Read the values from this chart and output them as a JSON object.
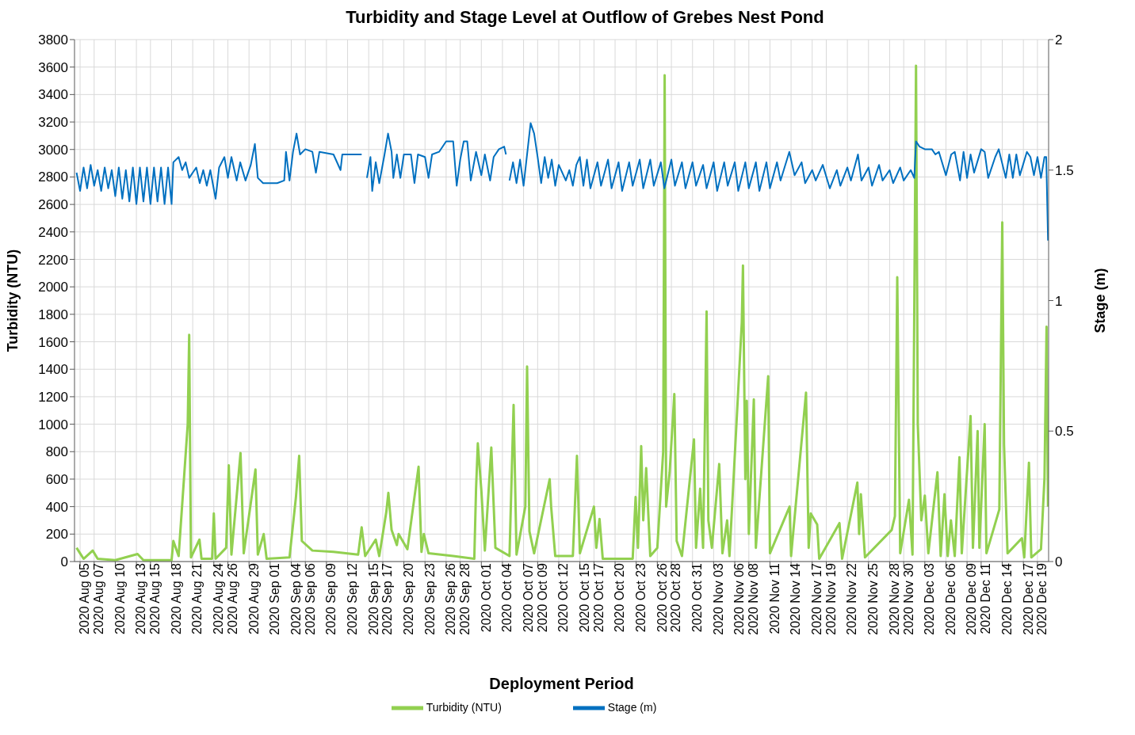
{
  "chart_data": {
    "type": "line",
    "title": "Turbidity and Stage Level at Outflow of Grebes Nest Pond",
    "xlabel": "Deployment Period",
    "ylabel": "Turbidity (NTU)",
    "y2label": "Stage (m)",
    "xlim": [
      "2020-08-04T05:00",
      "2020-12-20T14:00"
    ],
    "xticks": [
      {
        "value": "2020-08-05",
        "label": "2020 Aug 05"
      },
      {
        "value": "2020-08-07",
        "label": "2020 Aug 07"
      },
      {
        "value": "2020-08-10",
        "label": "2020 Aug 10"
      },
      {
        "value": "2020-08-13",
        "label": "2020 Aug 13"
      },
      {
        "value": "2020-08-15",
        "label": "2020 Aug 15"
      },
      {
        "value": "2020-08-18",
        "label": "2020 Aug 18"
      },
      {
        "value": "2020-08-21",
        "label": "2020 Aug 21"
      },
      {
        "value": "2020-08-24",
        "label": "2020 Aug 24"
      },
      {
        "value": "2020-08-26",
        "label": "2020 Aug 26"
      },
      {
        "value": "2020-08-29",
        "label": "2020 Aug 29"
      },
      {
        "value": "2020-09-01",
        "label": "2020 Sep 01"
      },
      {
        "value": "2020-09-04",
        "label": "2020 Sep 04"
      },
      {
        "value": "2020-09-06",
        "label": "2020 Sep 06"
      },
      {
        "value": "2020-09-09",
        "label": "2020 Sep 09"
      },
      {
        "value": "2020-09-12",
        "label": "2020 Sep 12"
      },
      {
        "value": "2020-09-15",
        "label": "2020 Sep 15"
      },
      {
        "value": "2020-09-17",
        "label": "2020 Sep 17"
      },
      {
        "value": "2020-09-20",
        "label": "2020 Sep 20"
      },
      {
        "value": "2020-09-23",
        "label": "2020 Sep 23"
      },
      {
        "value": "2020-09-26",
        "label": "2020 Sep 26"
      },
      {
        "value": "2020-09-28",
        "label": "2020 Sep 28"
      },
      {
        "value": "2020-10-01",
        "label": "2020 Oct 01"
      },
      {
        "value": "2020-10-04",
        "label": "2020 Oct 04"
      },
      {
        "value": "2020-10-07",
        "label": "2020 Oct 07"
      },
      {
        "value": "2020-10-09",
        "label": "2020 Oct 09"
      },
      {
        "value": "2020-10-12",
        "label": "2020 Oct 12"
      },
      {
        "value": "2020-10-15",
        "label": "2020 Oct 15"
      },
      {
        "value": "2020-10-17",
        "label": "2020 Oct 17"
      },
      {
        "value": "2020-10-20",
        "label": "2020 Oct 20"
      },
      {
        "value": "2020-10-23",
        "label": "2020 Oct 23"
      },
      {
        "value": "2020-10-26",
        "label": "2020 Oct 26"
      },
      {
        "value": "2020-10-28",
        "label": "2020 Oct 28"
      },
      {
        "value": "2020-10-31",
        "label": "2020 Oct 31"
      },
      {
        "value": "2020-11-03",
        "label": "2020 Nov 03"
      },
      {
        "value": "2020-11-06",
        "label": "2020 Nov 06"
      },
      {
        "value": "2020-11-08",
        "label": "2020 Nov 08"
      },
      {
        "value": "2020-11-11",
        "label": "2020 Nov 11"
      },
      {
        "value": "2020-11-14",
        "label": "2020 Nov 14"
      },
      {
        "value": "2020-11-17",
        "label": "2020 Nov 17"
      },
      {
        "value": "2020-11-19",
        "label": "2020 Nov 19"
      },
      {
        "value": "2020-11-22",
        "label": "2020 Nov 22"
      },
      {
        "value": "2020-11-25",
        "label": "2020 Nov 25"
      },
      {
        "value": "2020-11-28",
        "label": "2020 Nov 28"
      },
      {
        "value": "2020-11-30",
        "label": "2020 Nov 30"
      },
      {
        "value": "2020-12-03",
        "label": "2020 Dec 03"
      },
      {
        "value": "2020-12-06",
        "label": "2020 Dec 06"
      },
      {
        "value": "2020-12-09",
        "label": "2020 Dec 09"
      },
      {
        "value": "2020-12-11",
        "label": "2020 Dec 11"
      },
      {
        "value": "2020-12-14",
        "label": "2020 Dec 14"
      },
      {
        "value": "2020-12-17",
        "label": "2020 Dec 17"
      },
      {
        "value": "2020-12-19",
        "label": "2020 Dec 19"
      }
    ],
    "ylim": [
      0,
      3800
    ],
    "yticks": [
      0,
      200,
      400,
      600,
      800,
      1000,
      1200,
      1400,
      1600,
      1800,
      2000,
      2200,
      2400,
      2600,
      2800,
      3000,
      3200,
      3400,
      3600,
      3800
    ],
    "y2lim": [
      0,
      2
    ],
    "y2ticks": [
      0,
      0.5,
      1,
      1.5,
      2
    ],
    "grid": true,
    "legend": "bottom",
    "marker": "none",
    "line_style": "solid",
    "series": [
      {
        "name": "Turbidity (NTU)",
        "color": "#92d050",
        "x": [
          "2020-08-04T12:00",
          "2020-08-05T00:00",
          "2020-08-05T12:00",
          "2020-08-06T19:00",
          "2020-08-07T12:00",
          "2020-08-10T00:00",
          "2020-08-13T04:00",
          "2020-08-14T00:00",
          "2020-08-18T00:00",
          "2020-08-18T06:00",
          "2020-08-19T00:00",
          "2020-08-20T07:00",
          "2020-08-20T12:00",
          "2020-08-20T18:00",
          "2020-08-21T23:00",
          "2020-08-22T06:00",
          "2020-08-23T18:00",
          "2020-08-24T00:00",
          "2020-08-24T06:00",
          "2020-08-25T18:00",
          "2020-08-26T03:00",
          "2020-08-26T12:00",
          "2020-08-27T19:00",
          "2020-08-28T06:00",
          "2020-08-29T22:00",
          "2020-08-30T06:00",
          "2020-08-31T02:00",
          "2020-08-31T12:00",
          "2020-09-03T18:00",
          "2020-09-04T16:00",
          "2020-09-05T03:00",
          "2020-09-05T12:00",
          "2020-09-07T00:00",
          "2020-09-10T00:00",
          "2020-09-13T12:00",
          "2020-09-14T00:00",
          "2020-09-14T12:00",
          "2020-09-16T00:00",
          "2020-09-16T12:00",
          "2020-09-17T12:00",
          "2020-09-17T19:00",
          "2020-09-18T06:00",
          "2020-09-19T00:00",
          "2020-09-19T06:00",
          "2020-09-20T12:00",
          "2020-09-22T02:00",
          "2020-09-22T12:00",
          "2020-09-22T20:00",
          "2020-09-23T12:00",
          "2020-09-27T00:00",
          "2020-09-30T00:00",
          "2020-09-30T06:00",
          "2020-09-30T12:00",
          "2020-10-01T00:00",
          "2020-10-01T12:00",
          "2020-10-02T10:00",
          "2020-10-03T00:00",
          "2020-10-05T00:00",
          "2020-10-05T14:00",
          "2020-10-06T00:00",
          "2020-10-07T06:00",
          "2020-10-07T12:00",
          "2020-10-07T20:00",
          "2020-10-08T12:00",
          "2020-10-10T17:00",
          "2020-10-10T22:00",
          "2020-10-11T12:00",
          "2020-10-14T00:00",
          "2020-10-14T14:00",
          "2020-10-15T00:00",
          "2020-10-17T00:00",
          "2020-10-17T08:00",
          "2020-10-17T19:00",
          "2020-10-18T06:00",
          "2020-10-22T12:00",
          "2020-10-22T22:00",
          "2020-10-23T06:00",
          "2020-10-23T17:00",
          "2020-10-24T00:00",
          "2020-10-24T10:00",
          "2020-10-25T00:00",
          "2020-10-26T00:00",
          "2020-10-26T20:00",
          "2020-10-27T01:00",
          "2020-10-27T06:00",
          "2020-10-27T18:00",
          "2020-10-28T10:00",
          "2020-10-28T18:00",
          "2020-10-29T12:00",
          "2020-10-31T05:00",
          "2020-10-31T12:00",
          "2020-11-01T02:00",
          "2020-11-01T12:00",
          "2020-11-02T00:00",
          "2020-11-02T06:00",
          "2020-11-02T18:00",
          "2020-11-03T19:00",
          "2020-11-04T06:00",
          "2020-11-04T22:00",
          "2020-11-05T06:00",
          "2020-11-07T00:00",
          "2020-11-07T04:00",
          "2020-11-07T12:00",
          "2020-11-07T17:00",
          "2020-11-08T00:00",
          "2020-11-08T17:00",
          "2020-11-09T00:00",
          "2020-11-10T18:00",
          "2020-11-11T00:00",
          "2020-11-13T19:00",
          "2020-11-14T00:00",
          "2020-11-16T03:00",
          "2020-11-16T12:00",
          "2020-11-16T19:00",
          "2020-11-17T17:00",
          "2020-11-18T00:00",
          "2020-11-20T21:00",
          "2020-11-21T06:00",
          "2020-11-23T10:00",
          "2020-11-23T16:00",
          "2020-11-23T22:00",
          "2020-11-24T12:00",
          "2020-11-28T07:00",
          "2020-11-28T18:00",
          "2020-11-29T02:00",
          "2020-11-29T12:00",
          "2020-11-30T18:00",
          "2020-12-01T06:00",
          "2020-12-01T18:00",
          "2020-12-02T00:00",
          "2020-12-02T12:00",
          "2020-12-03T00:00",
          "2020-12-03T12:00",
          "2020-12-04T19:00",
          "2020-12-05T06:00",
          "2020-12-05T19:00",
          "2020-12-06T06:00",
          "2020-12-06T17:00",
          "2020-12-07T06:00",
          "2020-12-07T22:00",
          "2020-12-08T06:00",
          "2020-12-09T12:00",
          "2020-12-09T20:00",
          "2020-12-10T12:00",
          "2020-12-10T18:00",
          "2020-12-11T12:00",
          "2020-12-11T18:00",
          "2020-12-13T14:00",
          "2020-12-14T00:00",
          "2020-12-14T06:00",
          "2020-12-14T18:00",
          "2020-12-16T19:00",
          "2020-12-17T03:00",
          "2020-12-17T19:00",
          "2020-12-18T03:00",
          "2020-12-19T12:00",
          "2020-12-20T00:00",
          "2020-12-20T07:00",
          "2020-12-20T12:00"
        ],
        "values": [
          100,
          60,
          20,
          80,
          20,
          10,
          55,
          10,
          10,
          150,
          40,
          1000,
          1650,
          30,
          160,
          20,
          20,
          350,
          20,
          100,
          700,
          50,
          790,
          60,
          670,
          50,
          200,
          20,
          30,
          470,
          770,
          150,
          80,
          70,
          50,
          250,
          40,
          160,
          40,
          360,
          500,
          230,
          120,
          200,
          90,
          690,
          70,
          200,
          60,
          40,
          20,
          530,
          860,
          520,
          80,
          830,
          100,
          40,
          1140,
          50,
          400,
          1420,
          220,
          60,
          600,
          400,
          40,
          40,
          770,
          60,
          400,
          100,
          310,
          20,
          20,
          470,
          100,
          840,
          300,
          680,
          40,
          100,
          800,
          3540,
          400,
          650,
          1220,
          150,
          40,
          890,
          100,
          530,
          100,
          1820,
          300,
          100,
          710,
          60,
          300,
          40,
          1740,
          2155,
          600,
          1170,
          200,
          1180,
          100,
          1350,
          60,
          400,
          40,
          1230,
          100,
          350,
          270,
          20,
          280,
          20,
          575,
          200,
          490,
          30,
          230,
          330,
          2070,
          60,
          450,
          50,
          3610,
          1000,
          300,
          480,
          60,
          650,
          40,
          490,
          40,
          300,
          40,
          760,
          60,
          1060,
          100,
          950,
          100,
          1000,
          60,
          380,
          2470,
          850,
          60,
          170,
          30,
          720,
          30,
          90,
          610,
          1710,
          400
        ]
      },
      {
        "name": "Stage (m)",
        "color": "#0070c0",
        "axis": "y2",
        "x": [
          "2020-08-04T12:00",
          "2020-08-05T00:00",
          "2020-08-05T12:00",
          "2020-08-06T00:00",
          "2020-08-06T12:00",
          "2020-08-07T00:00",
          "2020-08-07T12:00",
          "2020-08-08T00:00",
          "2020-08-08T12:00",
          "2020-08-09T00:00",
          "2020-08-09T12:00",
          "2020-08-10T00:00",
          "2020-08-10T12:00",
          "2020-08-11T00:00",
          "2020-08-11T12:00",
          "2020-08-12T00:00",
          "2020-08-12T12:00",
          "2020-08-13T00:00",
          "2020-08-13T12:00",
          "2020-08-14T00:00",
          "2020-08-14T12:00",
          "2020-08-15T00:00",
          "2020-08-15T12:00",
          "2020-08-16T00:00",
          "2020-08-16T12:00",
          "2020-08-17T00:00",
          "2020-08-17T12:00",
          "2020-08-18T00:00",
          "2020-08-18T06:00",
          "2020-08-19T00:00",
          "2020-08-19T12:00",
          "2020-08-20T00:00",
          "2020-08-20T12:00",
          "2020-08-21T12:00",
          "2020-08-22T00:00",
          "2020-08-22T12:00",
          "2020-08-23T00:00",
          "2020-08-23T12:00",
          "2020-08-24T06:00",
          "2020-08-24T18:00",
          "2020-08-25T12:00",
          "2020-08-26T00:00",
          "2020-08-26T12:00",
          "2020-08-27T06:00",
          "2020-08-27T18:00",
          "2020-08-28T12:00",
          "2020-08-29T06:00",
          "2020-08-29T20:00",
          "2020-08-30T06:00",
          "2020-08-31T00:00",
          "2020-09-02T00:00",
          "2020-09-03T00:00",
          "2020-09-03T06:00",
          "2020-09-03T18:00",
          "2020-09-04T06:00",
          "2020-09-04T18:00",
          "2020-09-05T06:00",
          "2020-09-06T00:00",
          "2020-09-07T00:00",
          "2020-09-07T12:00",
          "2020-09-08T00:00",
          "2020-09-10T00:00",
          "2020-09-11T00:00",
          "2020-09-11T06:00",
          "2020-09-13T00:00",
          "2020-09-14T00:00",
          "2020-09-14T12:00",
          "2020-09-14T18:00",
          "2020-09-15T06:00",
          "2020-09-15T12:00",
          "2020-09-16T00:00",
          "2020-09-16T12:00",
          "2020-09-17T06:00",
          "2020-09-17T18:00",
          "2020-09-18T06:00",
          "2020-09-18T12:00",
          "2020-09-19T00:00",
          "2020-09-19T12:00",
          "2020-09-20T00:00",
          "2020-09-21T00:00",
          "2020-09-21T12:00",
          "2020-09-22T00:00",
          "2020-09-23T00:00",
          "2020-09-23T12:00",
          "2020-09-24T00:00",
          "2020-09-25T00:00",
          "2020-09-26T00:00",
          "2020-09-27T00:00",
          "2020-09-27T12:00",
          "2020-09-28T00:00",
          "2020-09-28T12:00",
          "2020-09-29T00:00",
          "2020-09-29T12:00",
          "2020-09-30T06:00",
          "2020-10-01T00:00",
          "2020-10-01T12:00",
          "2020-10-02T06:00",
          "2020-10-02T18:00",
          "2020-10-03T12:00",
          "2020-10-04T06:00",
          "2020-10-04T12:00",
          "2020-10-04T18:00",
          "2020-10-05T00:00",
          "2020-10-05T12:00",
          "2020-10-06T00:00",
          "2020-10-06T12:00",
          "2020-10-07T00:00",
          "2020-10-07T18:00",
          "2020-10-08T00:00",
          "2020-10-08T12:00",
          "2020-10-09T00:00",
          "2020-10-09T12:00",
          "2020-10-10T00:00",
          "2020-10-10T12:00",
          "2020-10-11T00:00",
          "2020-10-11T12:00",
          "2020-10-12T00:00",
          "2020-10-13T00:00",
          "2020-10-13T12:00",
          "2020-10-14T00:00",
          "2020-10-14T12:00",
          "2020-10-15T00:00",
          "2020-10-15T12:00",
          "2020-10-16T00:00",
          "2020-10-16T12:00",
          "2020-10-17T12:00",
          "2020-10-18T00:00",
          "2020-10-19T00:00",
          "2020-10-19T12:00",
          "2020-10-20T12:00",
          "2020-10-21T00:00",
          "2020-10-22T00:00",
          "2020-10-22T12:00",
          "2020-10-23T12:00",
          "2020-10-24T00:00",
          "2020-10-25T00:00",
          "2020-10-25T12:00",
          "2020-10-26T12:00",
          "2020-10-27T00:00",
          "2020-10-28T00:00",
          "2020-10-28T12:00",
          "2020-10-29T12:00",
          "2020-10-30T00:00",
          "2020-10-31T00:00",
          "2020-10-31T12:00",
          "2020-11-01T12:00",
          "2020-11-02T00:00",
          "2020-11-03T00:00",
          "2020-11-03T12:00",
          "2020-11-04T12:00",
          "2020-11-05T00:00",
          "2020-11-06T00:00",
          "2020-11-06T12:00",
          "2020-11-07T12:00",
          "2020-11-08T00:00",
          "2020-11-09T00:00",
          "2020-11-09T12:00",
          "2020-11-10T12:00",
          "2020-11-11T00:00",
          "2020-11-12T00:00",
          "2020-11-12T12:00",
          "2020-11-13T18:00",
          "2020-11-14T12:00",
          "2020-11-15T12:00",
          "2020-11-16T00:00",
          "2020-11-17T00:00",
          "2020-11-17T12:00",
          "2020-11-18T12:00",
          "2020-11-19T12:00",
          "2020-11-20T12:00",
          "2020-11-21T00:00",
          "2020-11-22T00:00",
          "2020-11-22T12:00",
          "2020-11-23T12:00",
          "2020-11-24T00:00",
          "2020-11-25T00:00",
          "2020-11-25T12:00",
          "2020-11-26T12:00",
          "2020-11-27T00:00",
          "2020-11-28T00:00",
          "2020-11-28T12:00",
          "2020-11-29T12:00",
          "2020-11-30T00:00",
          "2020-12-01T00:00",
          "2020-12-01T12:00",
          "2020-12-01T18:00",
          "2020-12-02T06:00",
          "2020-12-03T00:00",
          "2020-12-04T00:00",
          "2020-12-04T12:00",
          "2020-12-05T00:00",
          "2020-12-06T00:00",
          "2020-12-06T18:00",
          "2020-12-07T06:00",
          "2020-12-08T00:00",
          "2020-12-08T12:00",
          "2020-12-09T00:00",
          "2020-12-09T12:00",
          "2020-12-10T00:00",
          "2020-12-11T00:00",
          "2020-12-11T12:00",
          "2020-12-12T00:00",
          "2020-12-13T00:00",
          "2020-12-13T12:00",
          "2020-12-14T12:00",
          "2020-12-15T00:00",
          "2020-12-15T12:00",
          "2020-12-16T00:00",
          "2020-12-16T12:00",
          "2020-12-17T12:00",
          "2020-12-18T00:00",
          "2020-12-18T12:00",
          "2020-12-19T00:00",
          "2020-12-19T12:00",
          "2020-12-20T00:00",
          "2020-12-20T06:00",
          "2020-12-20T12:00"
        ],
        "values": [
          1.49,
          1.42,
          1.51,
          1.43,
          1.52,
          1.44,
          1.5,
          1.42,
          1.51,
          1.43,
          1.5,
          1.4,
          1.51,
          1.39,
          1.5,
          1.38,
          1.51,
          1.37,
          1.51,
          1.38,
          1.51,
          1.37,
          1.51,
          1.38,
          1.51,
          1.37,
          1.51,
          1.37,
          1.53,
          1.55,
          1.5,
          1.53,
          1.47,
          1.51,
          1.45,
          1.5,
          1.44,
          1.5,
          1.39,
          1.51,
          1.55,
          1.47,
          1.55,
          1.46,
          1.53,
          1.46,
          1.52,
          1.6,
          1.47,
          1.45,
          1.45,
          1.46,
          1.57,
          1.46,
          1.57,
          1.64,
          1.56,
          1.58,
          1.57,
          1.49,
          1.57,
          1.56,
          1.5,
          1.56,
          1.56,
          1.56,
          null,
          1.47,
          1.55,
          1.42,
          1.53,
          1.45,
          1.56,
          1.64,
          1.57,
          1.47,
          1.56,
          1.47,
          1.56,
          1.56,
          1.45,
          1.56,
          1.55,
          1.47,
          1.56,
          1.57,
          1.61,
          1.61,
          1.44,
          1.54,
          1.61,
          1.61,
          1.46,
          1.57,
          1.48,
          1.56,
          1.46,
          1.55,
          1.58,
          1.59,
          1.56,
          null,
          1.46,
          1.53,
          1.45,
          1.54,
          1.44,
          1.62,
          1.68,
          1.64,
          1.55,
          1.45,
          1.55,
          1.47,
          1.54,
          1.44,
          1.52,
          1.46,
          1.5,
          1.44,
          1.52,
          1.55,
          1.44,
          1.54,
          1.43,
          1.53,
          1.44,
          1.54,
          1.43,
          1.53,
          1.42,
          1.53,
          1.44,
          1.54,
          1.43,
          1.54,
          1.44,
          1.53,
          1.43,
          1.54,
          1.44,
          1.53,
          1.43,
          1.53,
          1.44,
          1.52,
          1.43,
          1.53,
          1.42,
          1.53,
          1.44,
          1.53,
          1.42,
          1.53,
          1.43,
          1.53,
          1.42,
          1.53,
          1.43,
          1.53,
          1.46,
          1.57,
          1.48,
          1.53,
          1.45,
          1.5,
          1.46,
          1.52,
          1.43,
          1.5,
          1.44,
          1.51,
          1.46,
          1.56,
          1.46,
          1.51,
          1.44,
          1.52,
          1.46,
          1.5,
          1.45,
          1.51,
          1.46,
          1.5,
          1.47,
          1.61,
          1.59,
          1.58,
          1.58,
          1.56,
          1.57,
          1.48,
          1.56,
          1.57,
          1.46,
          1.57,
          1.47,
          1.56,
          1.49,
          1.58,
          1.57,
          1.47,
          1.55,
          1.58,
          1.47,
          1.56,
          1.47,
          1.56,
          1.48,
          1.57,
          1.55,
          1.48,
          1.55,
          1.47,
          1.55,
          1.55,
          1.23
        ]
      }
    ]
  }
}
